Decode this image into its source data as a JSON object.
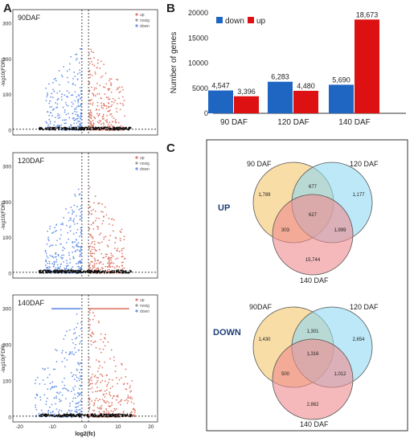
{
  "panels": {
    "a": "A",
    "b": "B",
    "c": "C"
  },
  "colors": {
    "up": "#e07a6a",
    "nosig": "#111111",
    "down": "#6a95e8",
    "bar_down": "#1f66c2",
    "bar_up": "#dd1111",
    "venn_90": "#f5d28a",
    "venn_120": "#8fd8f2",
    "venn_140": "#f08a8e"
  },
  "volcano": {
    "ylabel": "-log10(FDR)",
    "xlabel": "log2(fc)",
    "legend": [
      "up",
      "nosig",
      "down"
    ],
    "xticks": [
      "-20",
      "-10",
      "0",
      "10",
      "20"
    ],
    "plots": [
      {
        "title": "90DAF",
        "yticks": [
          "0",
          "100",
          "200",
          "300"
        ]
      },
      {
        "title": "120DAF",
        "yticks": [
          "0",
          "100",
          "200",
          "300"
        ]
      },
      {
        "title": "140DAF",
        "yticks": [
          "0",
          "100",
          "200",
          "300"
        ]
      }
    ]
  },
  "chart_data": [
    {
      "type": "bar",
      "ylabel": "Number of genes",
      "categories": [
        "90 DAF",
        "120 DAF",
        "140 DAF"
      ],
      "series": [
        {
          "name": "down",
          "values": [
            4547,
            6283,
            5690
          ],
          "labels": [
            "4,547",
            "6,283",
            "5,690"
          ]
        },
        {
          "name": "up",
          "values": [
            3396,
            4480,
            18673
          ],
          "labels": [
            "3,396",
            "4,480",
            "18,673"
          ]
        }
      ],
      "ylim": [
        0,
        20000
      ],
      "yticks": [
        "0",
        "5000",
        "10000",
        "15000",
        "20000"
      ],
      "legend_position": "top-left",
      "grid": false
    }
  ],
  "venn": {
    "up": {
      "label": "UP",
      "sets": [
        "90 DAF",
        "120 DAF",
        "140 DAF"
      ],
      "regions": {
        "only_a": "1,789",
        "only_b": "1,177",
        "only_c": "15,744",
        "ab": "677",
        "ac": "303",
        "bc": "1,999",
        "abc": "627"
      }
    },
    "down": {
      "label": "DOWN",
      "sets": [
        "90DAF",
        "120 DAF",
        "140 DAF"
      ],
      "regions": {
        "only_a": "1,430",
        "only_b": "2,654",
        "only_c": "2,862",
        "ab": "1,301",
        "ac": "500",
        "bc": "1,012",
        "abc": "1,316"
      }
    }
  }
}
